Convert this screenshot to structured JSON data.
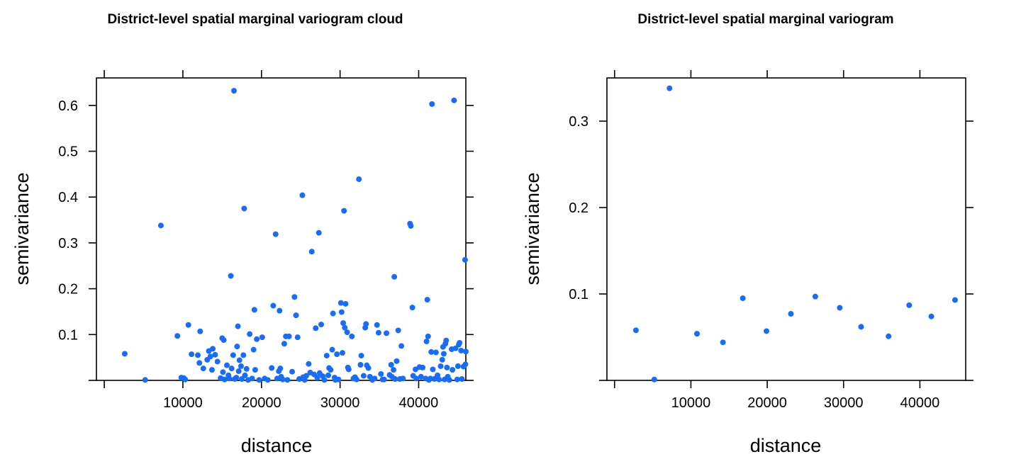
{
  "point_color": "#1a6cf5",
  "chart_data": [
    {
      "type": "scatter",
      "title": "District-level spatial marginal variogram cloud",
      "xlabel": "distance",
      "ylabel": "semivariance",
      "xlim": [
        -1000,
        46000
      ],
      "ylim": [
        0,
        0.66
      ],
      "xticks": [
        10000,
        20000,
        30000,
        40000
      ],
      "yticks": [
        0.1,
        0.2,
        0.3,
        0.4,
        0.5,
        0.6
      ],
      "ytick_labels": [
        "0.1",
        "0.2",
        "0.3",
        "0.4",
        "0.5",
        "0.6"
      ],
      "grid": false,
      "points": [
        [
          2600,
          0.058
        ],
        [
          5200,
          0.001
        ],
        [
          7200,
          0.338
        ],
        [
          9300,
          0.097
        ],
        [
          9800,
          0.006
        ],
        [
          10100,
          0.005
        ],
        [
          10300,
          0.002
        ],
        [
          10700,
          0.121
        ],
        [
          11100,
          0.057
        ],
        [
          11900,
          0.055
        ],
        [
          12100,
          0.038
        ],
        [
          12200,
          0.107
        ],
        [
          12600,
          0.026
        ],
        [
          13100,
          0.045
        ],
        [
          13300,
          0.064
        ],
        [
          13500,
          0.052
        ],
        [
          13700,
          0.023
        ],
        [
          13800,
          0.069
        ],
        [
          14100,
          0.056
        ],
        [
          14400,
          0.041
        ],
        [
          14800,
          0.005
        ],
        [
          15000,
          0.092
        ],
        [
          15100,
          0.018
        ],
        [
          15200,
          0.088
        ],
        [
          15300,
          0.002
        ],
        [
          15600,
          0.033
        ],
        [
          15800,
          0.011
        ],
        [
          15900,
          0.004
        ],
        [
          16100,
          0.228
        ],
        [
          16200,
          0.026
        ],
        [
          16400,
          0.055
        ],
        [
          16500,
          0.632
        ],
        [
          16600,
          0.003
        ],
        [
          16800,
          0.006
        ],
        [
          16900,
          0.074
        ],
        [
          17000,
          0.118
        ],
        [
          17100,
          0.02
        ],
        [
          17200,
          0.044
        ],
        [
          17400,
          0.031
        ],
        [
          17500,
          0.003
        ],
        [
          17700,
          0.055
        ],
        [
          17800,
          0.375
        ],
        [
          17900,
          0.011
        ],
        [
          18100,
          0.025
        ],
        [
          18300,
          0.001
        ],
        [
          18500,
          0.101
        ],
        [
          18800,
          0.004
        ],
        [
          19000,
          0.067
        ],
        [
          19100,
          0.154
        ],
        [
          19200,
          0.023
        ],
        [
          19400,
          0.09
        ],
        [
          19700,
          0.001
        ],
        [
          20100,
          0.094
        ],
        [
          20400,
          0.004
        ],
        [
          20800,
          0.001
        ],
        [
          21300,
          0.027
        ],
        [
          21500,
          0.163
        ],
        [
          21800,
          0.319
        ],
        [
          22000,
          0.004
        ],
        [
          22200,
          0.02
        ],
        [
          22300,
          0.152
        ],
        [
          22400,
          0.026
        ],
        [
          22500,
          0.008
        ],
        [
          22700,
          0.002
        ],
        [
          22900,
          0.08
        ],
        [
          23100,
          0.096
        ],
        [
          23300,
          0.001
        ],
        [
          23500,
          0.096
        ],
        [
          23900,
          0.019
        ],
        [
          24200,
          0.182
        ],
        [
          24400,
          0.142
        ],
        [
          24600,
          0.094
        ],
        [
          24800,
          0.003
        ],
        [
          25200,
          0.404
        ],
        [
          25300,
          0.007
        ],
        [
          25500,
          0.001
        ],
        [
          25700,
          0.01
        ],
        [
          26000,
          0.036
        ],
        [
          26200,
          0.017
        ],
        [
          26400,
          0.281
        ],
        [
          26700,
          0.013
        ],
        [
          26900,
          0.114
        ],
        [
          27100,
          0.006
        ],
        [
          27300,
          0.322
        ],
        [
          27400,
          0.016
        ],
        [
          27600,
          0.122
        ],
        [
          27800,
          0.009
        ],
        [
          28000,
          0.001
        ],
        [
          28300,
          0.054
        ],
        [
          28500,
          0.011
        ],
        [
          28600,
          0.027
        ],
        [
          28800,
          0.023
        ],
        [
          29000,
          0.067
        ],
        [
          29100,
          0.146
        ],
        [
          29300,
          0.006
        ],
        [
          29400,
          0.001
        ],
        [
          29600,
          0.057
        ],
        [
          29800,
          0.002
        ],
        [
          30100,
          0.169
        ],
        [
          30200,
          0.149
        ],
        [
          30300,
          0.06
        ],
        [
          30400,
          0.125
        ],
        [
          30500,
          0.37
        ],
        [
          30600,
          0.115
        ],
        [
          30700,
          0.167
        ],
        [
          30900,
          0.105
        ],
        [
          31000,
          0.028
        ],
        [
          31100,
          0.024
        ],
        [
          31500,
          0.096
        ],
        [
          31700,
          0.004
        ],
        [
          31900,
          0.007
        ],
        [
          32100,
          0.002
        ],
        [
          32400,
          0.439
        ],
        [
          32600,
          0.034
        ],
        [
          32700,
          0.054
        ],
        [
          33000,
          0.01
        ],
        [
          33200,
          0.115
        ],
        [
          33300,
          0.123
        ],
        [
          33400,
          0.033
        ],
        [
          33600,
          0.027
        ],
        [
          33800,
          0.008
        ],
        [
          34100,
          0.001
        ],
        [
          34400,
          0.004
        ],
        [
          34700,
          0.121
        ],
        [
          34900,
          0.104
        ],
        [
          35200,
          0.014
        ],
        [
          35400,
          0.002
        ],
        [
          35600,
          0.002
        ],
        [
          35900,
          0.103
        ],
        [
          36300,
          0.012
        ],
        [
          36500,
          0.034
        ],
        [
          36600,
          0.008
        ],
        [
          36800,
          0.023
        ],
        [
          36900,
          0.226
        ],
        [
          37000,
          0.003
        ],
        [
          37200,
          0.042
        ],
        [
          37400,
          0.109
        ],
        [
          37600,
          0.003
        ],
        [
          37800,
          0.075
        ],
        [
          38000,
          0.004
        ],
        [
          38900,
          0.342
        ],
        [
          39000,
          0.337
        ],
        [
          39200,
          0.159
        ],
        [
          39300,
          0.01
        ],
        [
          39600,
          0.024
        ],
        [
          39700,
          0.004
        ],
        [
          40100,
          0.029
        ],
        [
          40300,
          0.008
        ],
        [
          40500,
          0.028
        ],
        [
          40900,
          0.004
        ],
        [
          41000,
          0.085
        ],
        [
          41100,
          0.176
        ],
        [
          41200,
          0.096
        ],
        [
          41300,
          0.001
        ],
        [
          41500,
          0.004
        ],
        [
          41600,
          0.062
        ],
        [
          41700,
          0.603
        ],
        [
          41800,
          0.024
        ],
        [
          42000,
          0.003
        ],
        [
          42200,
          0.061
        ],
        [
          42300,
          0.006
        ],
        [
          42400,
          0.011
        ],
        [
          42600,
          0.002
        ],
        [
          42800,
          0.031
        ],
        [
          43000,
          0.045
        ],
        [
          43100,
          0.073
        ],
        [
          43200,
          0.058
        ],
        [
          43300,
          0.002
        ],
        [
          43400,
          0.08
        ],
        [
          43500,
          0.087
        ],
        [
          43600,
          0.028
        ],
        [
          43700,
          0.008
        ],
        [
          43900,
          0.001
        ],
        [
          44200,
          0.068
        ],
        [
          44300,
          0.023
        ],
        [
          44500,
          0.611
        ],
        [
          44700,
          0.07
        ],
        [
          44900,
          0.002
        ],
        [
          45000,
          0.031
        ],
        [
          45100,
          0.078
        ],
        [
          45200,
          0.082
        ],
        [
          45400,
          0.065
        ],
        [
          45500,
          0.003
        ],
        [
          45700,
          0.03
        ],
        [
          45900,
          0.263
        ],
        [
          46000,
          0.063
        ],
        [
          45950,
          0.035
        ]
      ]
    },
    {
      "type": "scatter",
      "title": "District-level spatial marginal variogram",
      "xlabel": "distance",
      "ylabel": "semivariance",
      "xlim": [
        -1000,
        46000
      ],
      "ylim": [
        0,
        0.35
      ],
      "xticks": [
        10000,
        20000,
        30000,
        40000
      ],
      "yticks": [
        0.1,
        0.2,
        0.3
      ],
      "ytick_labels": [
        "0.1",
        "0.2",
        "0.3"
      ],
      "grid": false,
      "points": [
        [
          2800,
          0.058
        ],
        [
          5200,
          0.001
        ],
        [
          7200,
          0.338
        ],
        [
          10800,
          0.054
        ],
        [
          14200,
          0.044
        ],
        [
          16800,
          0.095
        ],
        [
          19900,
          0.057
        ],
        [
          23100,
          0.077
        ],
        [
          26300,
          0.097
        ],
        [
          29500,
          0.084
        ],
        [
          32300,
          0.062
        ],
        [
          35900,
          0.051
        ],
        [
          38600,
          0.087
        ],
        [
          41500,
          0.074
        ],
        [
          44600,
          0.093
        ]
      ]
    }
  ]
}
